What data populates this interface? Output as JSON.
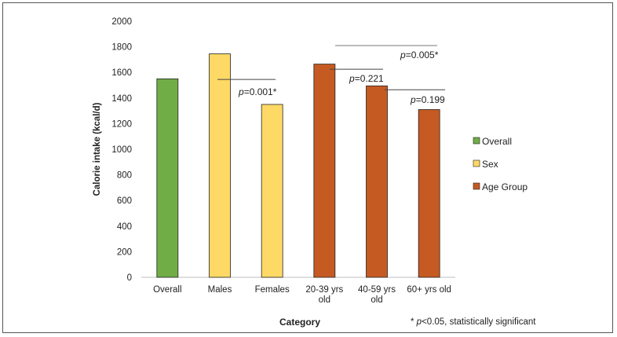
{
  "chart_data": {
    "type": "bar",
    "title": "",
    "xlabel": "Category",
    "ylabel": "Calorie intake (kcal/d)",
    "ylim": [
      0,
      2000
    ],
    "yticks": [
      0,
      200,
      400,
      600,
      800,
      1000,
      1200,
      1400,
      1600,
      1800,
      2000
    ],
    "grid": false,
    "legend_position": "right",
    "bars": [
      {
        "label": "Overall",
        "value": 1550,
        "group": "Overall"
      },
      {
        "label": "Males",
        "value": 1745,
        "group": "Sex"
      },
      {
        "label": "Females",
        "value": 1350,
        "group": "Sex"
      },
      {
        "label": "20-39 yrs old",
        "value": 1665,
        "group": "Age Group"
      },
      {
        "label": "40-59 yrs old",
        "value": 1495,
        "group": "Age Group"
      },
      {
        "label": "60+ yrs old",
        "value": 1310,
        "group": "Age Group"
      }
    ],
    "legend": [
      {
        "name": "Overall",
        "color": "#70AD47"
      },
      {
        "name": "Sex",
        "color": "#FFD966"
      },
      {
        "name": "Age Group",
        "color": "#C65A23"
      }
    ],
    "annotations": [
      {
        "p_label": "p",
        "text": "=0.001*",
        "from": "Males",
        "to": "Females",
        "line_y": 1545
      },
      {
        "p_label": "p",
        "text": "=0.221",
        "from": "20-39 yrs old",
        "to": "40-59 yrs old",
        "line_y": 1625
      },
      {
        "p_label": "p",
        "text": "=0.199",
        "from": "40-59 yrs old",
        "to": "60+ yrs old",
        "line_y": 1465
      },
      {
        "p_label": "p",
        "text": "=0.005*",
        "from": "20-39 yrs old",
        "to": "60+ yrs old",
        "line_y": 1810
      }
    ],
    "footnote": {
      "prefix": "* ",
      "p_label": "p",
      "text": "<0.05, statistically significant"
    }
  }
}
